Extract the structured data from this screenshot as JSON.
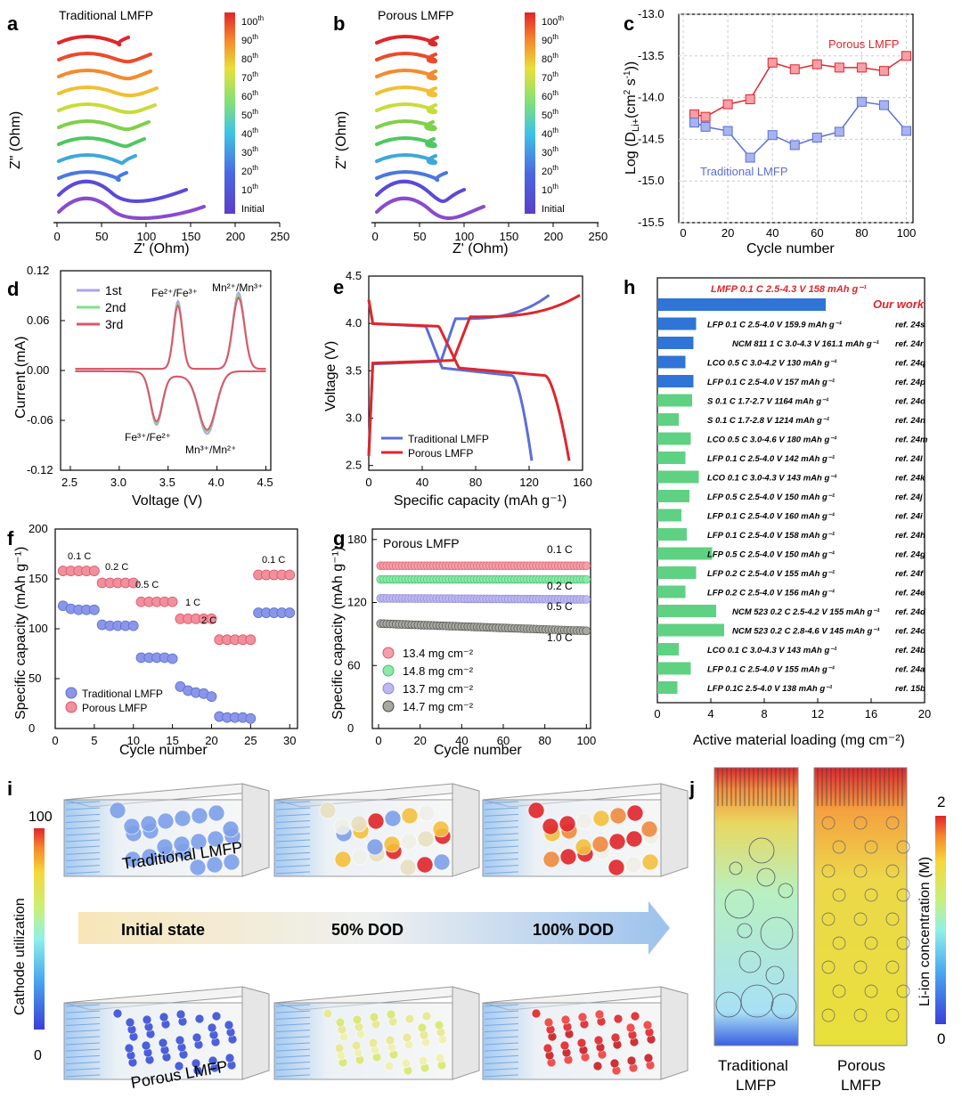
{
  "colors": {
    "red": "#e0262b",
    "blue": "#5b6fd6",
    "pink": "#f07c8a",
    "green": "#4fd083",
    "lav": "#a9a6e8",
    "gray": "#555555",
    "hbar_blue": "#2f74d6",
    "hbar_green": "#5fd183"
  },
  "chart_data": [
    {
      "panel": "a",
      "type": "line",
      "title": "Traditional LMFP",
      "xlabel": "Z' (Ohm)",
      "ylabel": "Z\" (Ohm)",
      "xticks": [
        "0",
        "50",
        "100",
        "150",
        "200",
        "250"
      ],
      "xlim": [
        0,
        250
      ],
      "legend": [
        "100th",
        "90th",
        "80th",
        "70th",
        "60th",
        "50th",
        "40th",
        "30th",
        "20th",
        "10th",
        "Initial"
      ],
      "series": [
        {
          "name": "100th",
          "x_end": 80
        },
        {
          "name": "90th",
          "x_end": 105
        },
        {
          "name": "80th",
          "x_end": 105
        },
        {
          "name": "70th",
          "x_end": 112
        },
        {
          "name": "60th",
          "x_end": 110
        },
        {
          "name": "50th",
          "x_end": 103
        },
        {
          "name": "40th",
          "x_end": 98
        },
        {
          "name": "30th",
          "x_end": 88
        },
        {
          "name": "20th",
          "x_end": 78
        },
        {
          "name": "10th",
          "x_end": 145
        },
        {
          "name": "Initial",
          "x_end": 165
        }
      ]
    },
    {
      "panel": "b",
      "type": "line",
      "title": "Porous LMFP",
      "xlabel": "Z' (Ohm)",
      "ylabel": "Z\" (Ohm)",
      "xticks": [
        "0",
        "50",
        "100",
        "150",
        "200",
        "250"
      ],
      "xlim": [
        0,
        250
      ],
      "legend": [
        "100th",
        "90th",
        "80th",
        "70th",
        "60th",
        "50th",
        "40th",
        "30th",
        "20th",
        "10th",
        "Initial"
      ],
      "series": [
        {
          "name": "100th",
          "x_end": 70
        },
        {
          "name": "90th",
          "x_end": 68
        },
        {
          "name": "80th",
          "x_end": 68
        },
        {
          "name": "70th",
          "x_end": 68
        },
        {
          "name": "60th",
          "x_end": 68
        },
        {
          "name": "50th",
          "x_end": 65
        },
        {
          "name": "40th",
          "x_end": 66
        },
        {
          "name": "30th",
          "x_end": 68
        },
        {
          "name": "20th",
          "x_end": 80
        },
        {
          "name": "10th",
          "x_end": 100
        },
        {
          "name": "Initial",
          "x_end": 122
        }
      ]
    },
    {
      "panel": "c",
      "type": "line",
      "xlabel": "Cycle number",
      "ylabel": "Log (D_Li+ (cm² s⁻¹))",
      "ylim": [
        -15.5,
        -13.0
      ],
      "xlim": [
        -2,
        103
      ],
      "yticks": [
        "-13.0",
        "-13.5",
        "-14.0",
        "-14.5",
        "-15.0",
        "-15.5"
      ],
      "xticks": [
        "0",
        "20",
        "40",
        "60",
        "80",
        "100"
      ],
      "x": [
        5,
        10,
        20,
        30,
        40,
        50,
        60,
        70,
        80,
        90,
        100
      ],
      "series": [
        {
          "name": "Porous LMFP",
          "values": [
            -14.2,
            -14.23,
            -14.08,
            -14.02,
            -13.58,
            -13.66,
            -13.6,
            -13.64,
            -13.64,
            -13.68,
            -13.5
          ]
        },
        {
          "name": "Traditional LMFP",
          "values": [
            -14.3,
            -14.35,
            -14.4,
            -14.72,
            -14.45,
            -14.57,
            -14.48,
            -14.41,
            -14.05,
            -14.09,
            -14.4
          ]
        }
      ]
    },
    {
      "panel": "d",
      "type": "line",
      "xlabel": "Voltage (V)",
      "ylabel": "Current (mA)",
      "xlim": [
        2.4,
        4.55
      ],
      "ylim": [
        -0.12,
        0.12
      ],
      "xticks": [
        "2.5",
        "3.0",
        "3.5",
        "4.0",
        "4.5"
      ],
      "yticks": [
        "0.12",
        "0.06",
        "0.00",
        "-0.06",
        "-0.12"
      ],
      "legend": [
        "1st",
        "2nd",
        "3rd"
      ],
      "annotations": [
        "Fe²⁺/Fe³⁺",
        "Mn²⁺/Mn³⁺",
        "Fe³⁺/Fe²⁺",
        "Mn³⁺/Mn²⁺"
      ],
      "peaks": {
        "ox_fe": [
          3.6,
          0.08
        ],
        "ox_mn": [
          4.22,
          0.09
        ],
        "red_fe": [
          3.38,
          -0.06
        ],
        "red_mn": [
          3.9,
          -0.072
        ]
      }
    },
    {
      "panel": "e",
      "type": "line",
      "xlabel": "Specific capacity (mAh g⁻¹)",
      "ylabel": "Voltage (V)",
      "xlim": [
        0,
        160
      ],
      "ylim": [
        2.45,
        4.5
      ],
      "xticks": [
        "0",
        "40",
        "80",
        "120",
        "160"
      ],
      "yticks": [
        "4.5",
        "4.0",
        "3.5",
        "3.0",
        "2.5"
      ],
      "series": [
        {
          "name": "Traditional LMFP",
          "charge_end": [
            135,
            4.3
          ],
          "discharge_end": [
            122,
            2.55
          ]
        },
        {
          "name": "Porous LMFP",
          "charge_end": [
            158,
            4.3
          ],
          "discharge_end": [
            150,
            2.55
          ]
        }
      ]
    },
    {
      "panel": "f",
      "type": "scatter",
      "xlabel": "Cycle number",
      "ylabel": "Specific capacity (mAh g⁻¹)",
      "xlim": [
        0,
        31
      ],
      "ylim": [
        0,
        200
      ],
      "xticks": [
        "0",
        "5",
        "10",
        "15",
        "20",
        "25",
        "30"
      ],
      "yticks": [
        "200",
        "150",
        "100",
        "50",
        "0"
      ],
      "rate_labels": [
        "0.1 C",
        "0.2 C",
        "0.5 C",
        "1 C",
        "2 C",
        "0.1 C"
      ],
      "series": [
        {
          "name": "Traditional LMFP",
          "values": [
            123,
            120,
            119,
            119,
            119,
            104,
            103,
            103,
            103,
            103,
            71,
            71,
            71,
            71,
            70,
            42,
            38,
            36,
            35,
            32,
            12,
            11,
            11,
            11,
            10,
            116,
            116,
            116,
            116,
            116
          ]
        },
        {
          "name": "Porous LMFP",
          "values": [
            158,
            158,
            158,
            158,
            158,
            146,
            146,
            146,
            146,
            146,
            127,
            127,
            127,
            127,
            127,
            110,
            110,
            110,
            110,
            110,
            89,
            89,
            89,
            89,
            89,
            154,
            154,
            154,
            154,
            154
          ]
        }
      ]
    },
    {
      "panel": "g",
      "type": "scatter",
      "title": "Porous LMFP",
      "xlabel": "Cycle number",
      "ylabel": "Specific capacity (mAh g⁻¹)",
      "xlim": [
        -3,
        102
      ],
      "ylim": [
        0,
        190
      ],
      "xticks": [
        "0",
        "20",
        "40",
        "60",
        "80",
        "100"
      ],
      "yticks": [
        "180",
        "120",
        "60",
        "0"
      ],
      "series": [
        {
          "name": "13.4 mg cm⁻²",
          "rate": "0.1 C",
          "values_start": 155,
          "values_end": 155
        },
        {
          "name": "14.8 mg cm⁻²",
          "rate": "0.2 C",
          "values_start": 142,
          "values_end": 142
        },
        {
          "name": "13.7 mg cm⁻²",
          "rate": "0.5 C",
          "values_start": 124,
          "values_end": 123
        },
        {
          "name": "14.7 mg cm⁻²",
          "rate": "1.0 C",
          "values_start": 100,
          "values_end": 93
        }
      ]
    },
    {
      "panel": "h",
      "type": "bar",
      "xlabel": "Active material loading (mg cm⁻²)",
      "xlim": [
        0,
        20
      ],
      "xticks": [
        "0",
        "4",
        "8",
        "12",
        "16",
        "20"
      ],
      "rows": [
        {
          "label": "LMFP  0.1 C  2.5-4.3 V  158 mAh g⁻¹",
          "ref": "Our work",
          "value": 12.6,
          "ours": true
        },
        {
          "label": "LFP  0.1 C  2.5-4.0 V  159.9 mAh g⁻¹",
          "ref": "ref. 24s",
          "value": 2.9
        },
        {
          "label": "NCM 811  1 C  3.0-4.3 V  161.1 mAh g⁻¹",
          "ref": "ref. 24r",
          "value": 2.7
        },
        {
          "label": "LCO  0.5 C  3.0-4.2 V  130 mAh g⁻¹",
          "ref": "ref. 24q",
          "value": 2.1
        },
        {
          "label": "LFP  0.1 C  2.5-4.0 V  157 mAh g⁻¹",
          "ref": "ref. 24p",
          "value": 2.7
        },
        {
          "label": "S  0.1 C  1.7-2.7 V  1164 mAh g⁻¹",
          "ref": "ref. 24o",
          "value": 2.6
        },
        {
          "label": "S  0.1 C  1.7-2.8 V  1214 mAh g⁻¹",
          "ref": "ref. 24n",
          "value": 1.6
        },
        {
          "label": "LCO  0.5 C  3.0-4.6 V  180 mAh g⁻¹",
          "ref": "ref. 24m",
          "value": 2.5
        },
        {
          "label": "LFP  0.1 C  2.5-4.0 V  142 mAh g⁻¹",
          "ref": "ref. 24l",
          "value": 2.1
        },
        {
          "label": "LCO  0.1 C  3.0-4.3 V  143 mAh g⁻¹",
          "ref": "ref. 24k",
          "value": 3.1
        },
        {
          "label": "LFP  0.5 C  2.5-4.0 V  150 mAh g⁻¹",
          "ref": "ref. 24j",
          "value": 2.4
        },
        {
          "label": "LFP  0.1 C  2.5-4.0 V  160 mAh g⁻¹",
          "ref": "ref. 24i",
          "value": 1.8
        },
        {
          "label": "LFP  0.1 C  2.5-4.0 V  158 mAh g⁻¹",
          "ref": "ref. 24h",
          "value": 2.2
        },
        {
          "label": "LFP  0.5 C  2.5-4.0 V  150 mAh g⁻¹",
          "ref": "ref. 24g",
          "value": 4.1
        },
        {
          "label": "LFP  0.2 C  2.5-4.0 V  155 mAh g⁻¹",
          "ref": "ref. 24f",
          "value": 2.9
        },
        {
          "label": "LFP  0.2 C  2.5-4.0 V  156 mAh g⁻¹",
          "ref": "ref. 24e",
          "value": 2.1
        },
        {
          "label": "NCM 523  0.2 C  2.5-4.2 V  155 mAh g⁻¹",
          "ref": "ref. 24d",
          "value": 4.4
        },
        {
          "label": "NCM 523  0.2 C  2.8-4.6 V  145 mAh g⁻¹",
          "ref": "ref. 24c",
          "value": 5.0
        },
        {
          "label": "LCO  0.1 C  3.0-4.3 V  143 mAh g⁻¹",
          "ref": "ref. 24b",
          "value": 1.6
        },
        {
          "label": "LFP  0.1 C  2.5-4.0 V  155 mAh g⁻¹",
          "ref": "ref. 24a",
          "value": 2.5
        },
        {
          "label": "LFP  0.1C  2.5-4.0 V  138 mAh g⁻¹",
          "ref": "ref. 15b",
          "value": 1.5
        }
      ]
    },
    {
      "panel": "i",
      "type": "heatmap",
      "colorbar_label": "Cathode utilization",
      "colorbar_max": "100",
      "colorbar_min": "0",
      "row_labels": [
        "Traditional LMFP",
        "Porous LMFP"
      ],
      "stages": [
        "Initial state",
        "50% DOD",
        "100% DOD"
      ]
    },
    {
      "panel": "j",
      "type": "heatmap",
      "colorbar_label": "Li-ion concentration (M)",
      "colorbar_max": "2",
      "colorbar_min": "0",
      "column_labels": [
        "Traditional LMFP",
        "Porous LMFP"
      ]
    }
  ]
}
